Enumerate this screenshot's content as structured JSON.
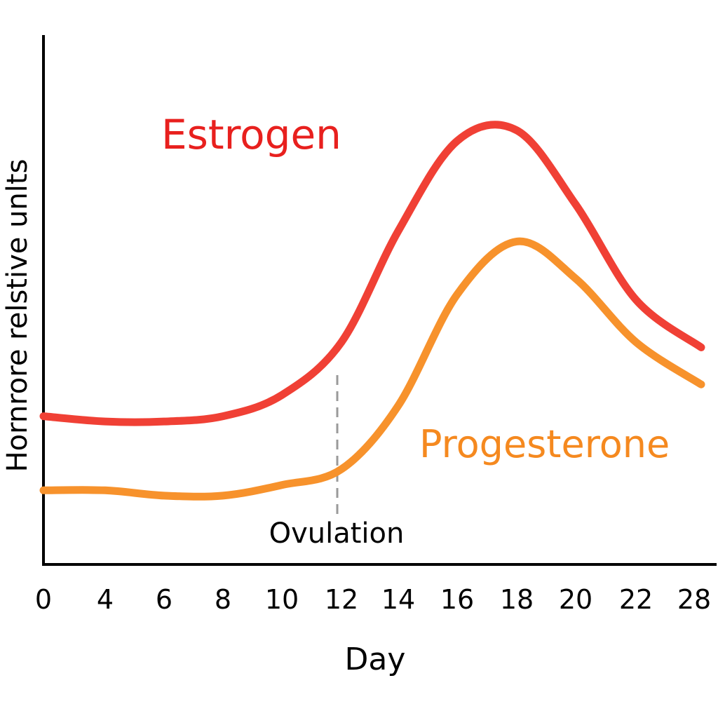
{
  "chart_data": {
    "type": "line",
    "title": "",
    "xlabel": "Day",
    "ylabel": "Hornrore relstive unlts",
    "categories": [
      "0",
      "4",
      "6",
      "8",
      "10",
      "12",
      "14",
      "16",
      "18",
      "20",
      "22",
      "28"
    ],
    "ylim": [
      0,
      100
    ],
    "grid": false,
    "series": [
      {
        "name": "Estrogen",
        "color": "#f04035",
        "label_color": "#e8201e",
        "values": [
          28,
          27,
          27,
          28,
          32,
          42,
          63,
          80,
          82,
          68,
          50,
          41
        ]
      },
      {
        "name": "Progesterone",
        "color": "#f7922c",
        "label_color": "#f5891f",
        "values": [
          14,
          14,
          13,
          13,
          15,
          18,
          30,
          51,
          61,
          54,
          42,
          34
        ]
      }
    ],
    "annotations": [
      {
        "text": "Ovulation",
        "at_category": "12",
        "style": "dashed-vertical-line",
        "color": "#9a9a9a"
      }
    ]
  }
}
